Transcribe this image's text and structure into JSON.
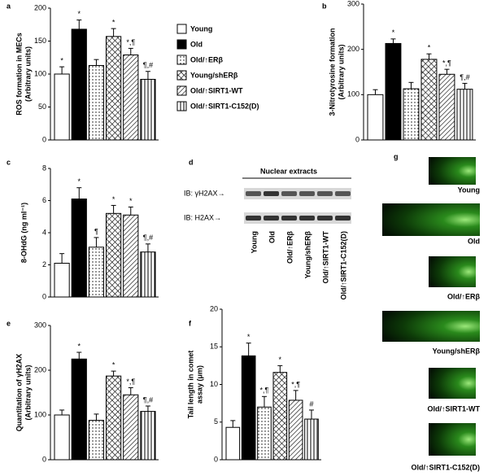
{
  "legend": {
    "items": [
      {
        "name": "Young",
        "fill": "white"
      },
      {
        "name": "Old",
        "fill": "black"
      },
      {
        "name": "Old/↑ERβ",
        "fill": "dots"
      },
      {
        "name": "Young/shERβ",
        "fill": "crosshatch"
      },
      {
        "name": "Old/↑SIRT1-WT",
        "fill": "diagonal"
      },
      {
        "name": "Old/↑SIRT1-C152(D)",
        "fill": "vertical"
      }
    ]
  },
  "chart_data": [
    {
      "type": "bar",
      "panel": "a",
      "ylabel": [
        "ROS formation in MECs",
        "(Arbitrary units)"
      ],
      "values": [
        100,
        168,
        113,
        157,
        129,
        92
      ],
      "errors": [
        11,
        14,
        9,
        12,
        10,
        12
      ],
      "annotations": [
        "*",
        "*",
        null,
        "*",
        "*,¶",
        "¶,#"
      ],
      "ylim": [
        0,
        200
      ],
      "yticks": [
        0,
        50,
        100,
        150,
        200
      ]
    },
    {
      "type": "bar",
      "panel": "b",
      "ylabel": [
        "3-Nitrotyrosine formation",
        "(Arbitrary units)"
      ],
      "values": [
        100,
        213,
        113,
        178,
        145,
        112
      ],
      "errors": [
        11,
        10,
        14,
        12,
        11,
        13
      ],
      "annotations": [
        null,
        "*",
        null,
        "*",
        "*,¶",
        "¶,#"
      ],
      "ylim": [
        0,
        300
      ],
      "yticks": [
        0,
        100,
        200,
        300
      ]
    },
    {
      "type": "bar",
      "panel": "c",
      "ylabel": [
        "8-OHdG (ng ml⁻¹)"
      ],
      "values": [
        2.1,
        6.1,
        3.1,
        5.2,
        5.1,
        2.8
      ],
      "errors": [
        0.6,
        0.7,
        0.6,
        0.5,
        0.5,
        0.5
      ],
      "annotations": [
        null,
        "*",
        "¶",
        "*",
        "*",
        "¶,#"
      ],
      "ylim": [
        0,
        8
      ],
      "yticks": [
        0,
        2,
        4,
        6,
        8
      ]
    },
    {
      "type": "bar",
      "panel": "e",
      "ylabel": [
        "Quantitation of γH2AX",
        "(Arbitrary units)"
      ],
      "values": [
        100,
        225,
        88,
        187,
        145,
        108
      ],
      "errors": [
        11,
        15,
        14,
        11,
        16,
        12
      ],
      "annotations": [
        null,
        "*",
        null,
        "*",
        "*,¶",
        "¶,#"
      ],
      "ylim": [
        0,
        300
      ],
      "yticks": [
        0,
        100,
        200,
        300
      ]
    },
    {
      "type": "bar",
      "panel": "f",
      "ylabel": [
        "Tail length in comet",
        "assay (μm)"
      ],
      "values": [
        4.3,
        13.8,
        7.0,
        11.6,
        7.9,
        5.4
      ],
      "errors": [
        0.9,
        1.7,
        1.4,
        0.9,
        1.3,
        1.2
      ],
      "annotations": [
        null,
        "*",
        "*,¶",
        "*",
        "*,¶",
        "#"
      ],
      "ylim": [
        0,
        20
      ],
      "yticks": [
        0,
        5,
        10,
        15,
        20
      ]
    }
  ],
  "blot": {
    "panel": "d",
    "title": "Nuclear extracts",
    "rows": [
      "IB: γH2AX→",
      "IB: H2AX→"
    ],
    "lanes": [
      "Young",
      "Old",
      "Old/↑ERβ",
      "Young/shERβ",
      "Old/↑SIRT1-WT",
      "Old/↑SIRT1-C152(D)"
    ]
  },
  "comet": {
    "panel": "g",
    "labels": [
      "Young",
      "Old",
      "Old/↑ERβ",
      "Young/shERβ",
      "Old/↑SIRT1-WT",
      "Old/↑SIRT1-C152(D)"
    ]
  }
}
